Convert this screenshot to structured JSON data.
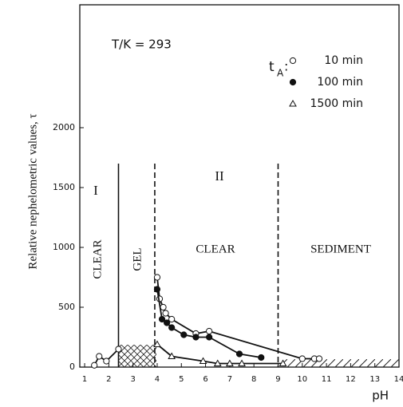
{
  "chart_data": {
    "type": "scatter",
    "annotation": "T/K = 293",
    "legend_title": "t",
    "legend_title_sub": "A",
    "legend_title_colon": ":",
    "x_label": "pH",
    "y_label": "Relative nephelometric values, τ",
    "region_labels": [
      "I",
      "II",
      "CLEAR",
      "GEL",
      "CLEAR",
      "SEDIMENT"
    ],
    "boundaries": [
      {
        "x": 2.4,
        "style": "solid"
      },
      {
        "x": 3.9,
        "style": "dashed"
      },
      {
        "x": 9.0,
        "style": "dashed"
      }
    ],
    "xlim": [
      0.8,
      14
    ],
    "ylim": [
      0,
      3000
    ],
    "xticks": [
      1,
      2,
      3,
      4,
      5,
      6,
      7,
      8,
      9,
      10,
      11,
      12,
      13,
      14
    ],
    "yticks": [
      0,
      500,
      1000,
      1500,
      2000
    ],
    "series": [
      {
        "name": "10 min",
        "marker": "open-circle",
        "color": "#111",
        "x": [
          1.4,
          1.6,
          1.9,
          2.4,
          null,
          4.0,
          4.1,
          4.25,
          4.35,
          4.6,
          5.6,
          6.15,
          10.0,
          10.5,
          10.7
        ],
        "values": [
          15,
          90,
          50,
          150,
          null,
          750,
          570,
          500,
          450,
          400,
          280,
          300,
          70,
          70,
          70
        ]
      },
      {
        "name": "100 min",
        "marker": "filled-circle",
        "color": "#111",
        "x": [
          4.0,
          4.2,
          4.4,
          4.6,
          5.1,
          5.6,
          6.15,
          7.4,
          8.3
        ],
        "values": [
          650,
          400,
          370,
          330,
          270,
          250,
          250,
          110,
          80
        ]
      },
      {
        "name": "1500 min",
        "marker": "open-triangle",
        "color": "#111",
        "x": [
          4.0,
          4.6,
          5.9,
          6.5,
          7.0,
          7.5,
          9.2
        ],
        "values": [
          190,
          90,
          50,
          30,
          30,
          30,
          30
        ]
      }
    ]
  }
}
